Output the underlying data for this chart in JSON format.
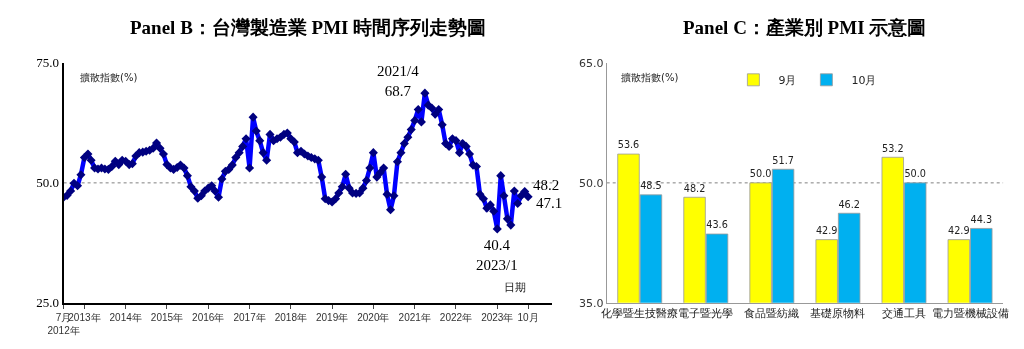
{
  "chart_data": [
    {
      "type": "line",
      "title": "Panel B：台灣製造業 PMI 時間序列走勢圖",
      "ylabel": "擴散指數(%)",
      "xlabel": "日期",
      "x": [
        "2012-07",
        "2012-08",
        "2012-09",
        "2012-10",
        "2012-11",
        "2012-12",
        "2013-01",
        "2013-02",
        "2013-03",
        "2013-04",
        "2013-05",
        "2013-06",
        "2013-07",
        "2013-08",
        "2013-09",
        "2013-10",
        "2013-11",
        "2013-12",
        "2014-01",
        "2014-02",
        "2014-03",
        "2014-04",
        "2014-05",
        "2014-06",
        "2014-07",
        "2014-08",
        "2014-09",
        "2014-10",
        "2014-11",
        "2014-12",
        "2015-01",
        "2015-02",
        "2015-03",
        "2015-04",
        "2015-05",
        "2015-06",
        "2015-07",
        "2015-08",
        "2015-09",
        "2015-10",
        "2015-11",
        "2015-12",
        "2016-01",
        "2016-02",
        "2016-03",
        "2016-04",
        "2016-05",
        "2016-06",
        "2016-07",
        "2016-08",
        "2016-09",
        "2016-10",
        "2016-11",
        "2016-12",
        "2017-01",
        "2017-02",
        "2017-03",
        "2017-04",
        "2017-05",
        "2017-06",
        "2017-07",
        "2017-08",
        "2017-09",
        "2017-10",
        "2017-11",
        "2017-12",
        "2018-01",
        "2018-02",
        "2018-03",
        "2018-04",
        "2018-05",
        "2018-06",
        "2018-07",
        "2018-08",
        "2018-09",
        "2018-10",
        "2018-11",
        "2018-12",
        "2019-01",
        "2019-02",
        "2019-03",
        "2019-04",
        "2019-05",
        "2019-06",
        "2019-07",
        "2019-08",
        "2019-09",
        "2019-10",
        "2019-11",
        "2019-12",
        "2020-01",
        "2020-02",
        "2020-03",
        "2020-04",
        "2020-05",
        "2020-06",
        "2020-07",
        "2020-08",
        "2020-09",
        "2020-10",
        "2020-11",
        "2020-12",
        "2021-01",
        "2021-02",
        "2021-03",
        "2021-04",
        "2021-05",
        "2021-06",
        "2021-07",
        "2021-08",
        "2021-09",
        "2021-10",
        "2021-11",
        "2021-12",
        "2022-01",
        "2022-02",
        "2022-03",
        "2022-04",
        "2022-05",
        "2022-06",
        "2022-07",
        "2022-08",
        "2022-09",
        "2022-10",
        "2022-11",
        "2022-12",
        "2023-01",
        "2023-02",
        "2023-03",
        "2023-04",
        "2023-05",
        "2023-06",
        "2023-07",
        "2023-08",
        "2023-09",
        "2023-10"
      ],
      "series": [
        {
          "color": "#0000ff",
          "values": [
            47.0,
            47.4,
            48.3,
            49.9,
            49.4,
            51.7,
            55.3,
            56.0,
            54.7,
            53.1,
            52.9,
            53.1,
            52.9,
            52.8,
            53.4,
            54.5,
            53.8,
            54.7,
            54.5,
            53.8,
            54.0,
            55.6,
            56.3,
            56.4,
            56.6,
            56.8,
            57.2,
            58.3,
            57.2,
            56.0,
            53.8,
            53.1,
            52.8,
            53.2,
            53.7,
            53.1,
            51.5,
            49.2,
            48.3,
            46.8,
            47.3,
            48.3,
            48.9,
            49.4,
            48.3,
            47.0,
            50.8,
            52.4,
            52.8,
            53.7,
            55.3,
            56.3,
            57.6,
            59.2,
            53.1,
            63.7,
            60.8,
            58.8,
            56.3,
            54.7,
            60.1,
            58.8,
            59.2,
            59.5,
            60.1,
            60.4,
            59.2,
            58.5,
            56.3,
            56.6,
            56.0,
            55.6,
            55.3,
            55.0,
            54.7,
            51.2,
            46.7,
            46.3,
            46.0,
            46.7,
            47.9,
            49.2,
            51.8,
            48.9,
            47.9,
            47.8,
            47.9,
            48.9,
            50.5,
            53.1,
            56.3,
            51.2,
            52.1,
            53.1,
            47.6,
            44.4,
            47.3,
            54.4,
            56.3,
            58.2,
            59.5,
            61.1,
            63.0,
            65.3,
            62.7,
            68.7,
            66.2,
            65.6,
            64.3,
            65.3,
            62.1,
            58.2,
            57.6,
            59.2,
            58.8,
            56.3,
            58.2,
            57.6,
            56.0,
            53.7,
            53.4,
            47.6,
            46.7,
            44.7,
            45.4,
            44.1,
            40.4,
            51.5,
            47.3,
            42.5,
            41.2,
            48.3,
            45.7,
            47.3,
            48.2,
            47.1
          ]
        }
      ],
      "xlim": [
        "2012-07",
        "2024-05"
      ],
      "xticks": [
        {
          "value": "2012-07",
          "label": "7月\n2012年"
        },
        {
          "value": "2013-01",
          "label": "2013年"
        },
        {
          "value": "2014-01",
          "label": "2014年"
        },
        {
          "value": "2015-01",
          "label": "2015年"
        },
        {
          "value": "2016-01",
          "label": "2016年"
        },
        {
          "value": "2017-01",
          "label": "2017年"
        },
        {
          "value": "2018-01",
          "label": "2018年"
        },
        {
          "value": "2019-01",
          "label": "2019年"
        },
        {
          "value": "2020-01",
          "label": "2020年"
        },
        {
          "value": "2021-01",
          "label": "2021年"
        },
        {
          "value": "2022-01",
          "label": "2022年"
        },
        {
          "value": "2023-01",
          "label": "2023年"
        },
        {
          "value": "2023-10",
          "label": "10月"
        }
      ],
      "ylim": [
        25,
        75
      ],
      "yticks": [
        {
          "value": 25,
          "label": "25.0"
        },
        {
          "value": 50,
          "label": "50.0"
        },
        {
          "value": 75,
          "label": "75.0"
        }
      ],
      "marker": "diamond",
      "line_style": "solid",
      "grid": false,
      "ref_lines": [
        {
          "axis": "y",
          "value": 50,
          "color": "#808080",
          "line_style": "dotted"
        }
      ],
      "annotations": [
        {
          "text": "2021/4\n68.7",
          "x": "2021-04",
          "y": 68.7
        },
        {
          "text": "40.4\n2023/1",
          "x": "2023-01",
          "y": 40.4
        },
        {
          "text": "48.2",
          "x": "2023-09",
          "y": 48.2
        },
        {
          "text": "47.1",
          "x": "2023-10",
          "y": 47.1
        }
      ]
    },
    {
      "type": "bar",
      "title": "Panel C：產業別 PMI 示意圖",
      "ylabel": "擴散指數(%)",
      "categories": [
        "化學暨生技醫療",
        "電子暨光學",
        "食品暨紡織",
        "基礎原物料",
        "交通工具",
        "電力暨機械設備"
      ],
      "series": [
        {
          "name": "9月",
          "color": "#ffff00",
          "values": [
            53.6,
            48.2,
            50.0,
            42.9,
            53.2,
            42.9
          ],
          "value_labels": [
            "53.6",
            "48.2",
            "50.0",
            "42.9",
            "53.2",
            "42.9"
          ]
        },
        {
          "name": "10月",
          "color": "#00b0f0",
          "values": [
            48.5,
            43.6,
            51.7,
            46.2,
            50.0,
            44.3
          ],
          "value_labels": [
            "48.5",
            "43.6",
            "51.7",
            "46.2",
            "50.0",
            "44.3"
          ]
        }
      ],
      "ylim": [
        35,
        65
      ],
      "yticks": [
        {
          "value": 35,
          "label": "35.0"
        },
        {
          "value": 50,
          "label": "50.0"
        },
        {
          "value": 65,
          "label": "65.0"
        }
      ],
      "grid": false,
      "legend": "top",
      "ref_lines": [
        {
          "axis": "y",
          "value": 50,
          "color": "#808080",
          "line_style": "dotted"
        }
      ]
    }
  ]
}
